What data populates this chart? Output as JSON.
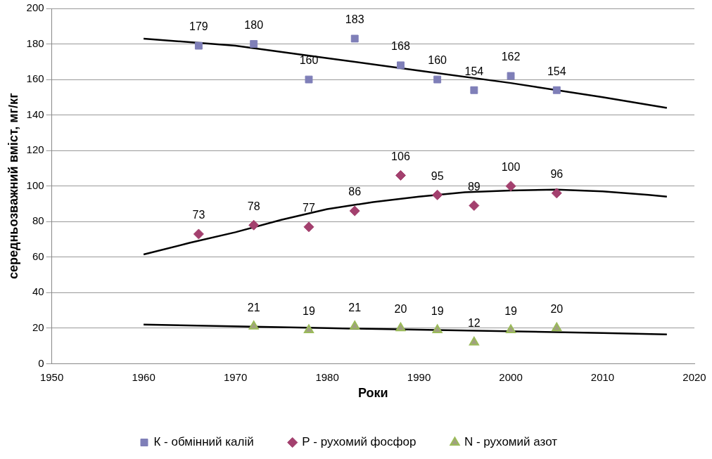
{
  "chart_data": {
    "type": "scatter",
    "xlabel": "Роки",
    "ylabel": "середньозважний вміст, мг/кг",
    "xlim": [
      1950,
      2020
    ],
    "xticks": [
      1950,
      1960,
      1970,
      1980,
      1990,
      2000,
      2010,
      2020
    ],
    "ylim": [
      0,
      200
    ],
    "yticks": [
      0,
      20,
      40,
      60,
      80,
      100,
      120,
      140,
      160,
      180,
      200
    ],
    "grid": "y",
    "legend": "bottom",
    "series": [
      {
        "name": "К - обмінний калій",
        "type": "scatter",
        "marker": "square",
        "color": "#7f7fb8",
        "x": [
          1966,
          1972,
          1978,
          1983,
          1988,
          1992,
          1996,
          2000,
          2005
        ],
        "values": [
          179,
          180,
          160,
          183,
          168,
          160,
          154,
          162,
          154
        ],
        "value_labels": [
          "179",
          "180",
          "160",
          "183",
          "168",
          "160",
          "154",
          "162",
          "154"
        ]
      },
      {
        "name": "Р - рухомий фосфор",
        "type": "scatter",
        "marker": "diamond",
        "color": "#a3406e",
        "x": [
          1966,
          1972,
          1978,
          1983,
          1988,
          1992,
          1996,
          2000,
          2005
        ],
        "values": [
          73,
          78,
          77,
          86,
          106,
          95,
          89,
          100,
          96
        ],
        "value_labels": [
          "73",
          "78",
          "77",
          "86",
          "106",
          "95",
          "89",
          "100",
          "96"
        ]
      },
      {
        "name": "N - рухомий азот",
        "type": "scatter",
        "marker": "triangle",
        "color": "#9bbb59",
        "x": [
          1972,
          1978,
          1983,
          1988,
          1992,
          1996,
          2000,
          2005
        ],
        "values": [
          21,
          19,
          21,
          20,
          19,
          12,
          19,
          20
        ],
        "value_labels": [
          "21",
          "19",
          "21",
          "20",
          "19",
          "12",
          "19",
          "20"
        ]
      },
      {
        "type": "line",
        "marker": "none",
        "color": "#000000",
        "x": [
          1960,
          1970,
          1980,
          1990,
          2000,
          2010,
          2017
        ],
        "values": [
          183,
          179,
          172,
          165,
          158,
          150,
          144
        ]
      },
      {
        "type": "line",
        "marker": "none",
        "color": "#000000",
        "x": [
          1960,
          1965,
          1970,
          1975,
          1980,
          1985,
          1990,
          1995,
          2000,
          2005,
          2010,
          2015,
          2017
        ],
        "values": [
          61.5,
          68,
          74,
          81,
          87,
          91,
          94,
          96.5,
          97.5,
          98,
          97,
          95,
          94
        ]
      },
      {
        "type": "line",
        "marker": "none",
        "color": "#000000",
        "x": [
          1960,
          1980,
          2010,
          2017
        ],
        "values": [
          22,
          20,
          17.3,
          16.5
        ]
      }
    ]
  }
}
